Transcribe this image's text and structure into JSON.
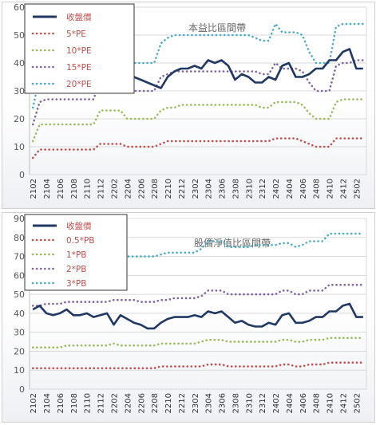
{
  "chart_data": [
    {
      "type": "line",
      "title": "本益比區間帶",
      "x": [
        "2102",
        "2103",
        "2104",
        "2105",
        "2106",
        "2107",
        "2108",
        "2109",
        "2110",
        "2111",
        "2112",
        "2201",
        "2202",
        "2203",
        "2204",
        "2205",
        "2206",
        "2207",
        "2208",
        "2209",
        "2210",
        "2211",
        "2212",
        "2301",
        "2302",
        "2303",
        "2304",
        "2305",
        "2306",
        "2307",
        "2308",
        "2309",
        "2310",
        "2311",
        "2312",
        "2401",
        "2402",
        "2403",
        "2404",
        "2405",
        "2406",
        "2407",
        "2408",
        "2409",
        "2410",
        "2411",
        "2412",
        "2501",
        "2502",
        "2503"
      ],
      "xticks": [
        "2102",
        "2104",
        "2106",
        "2108",
        "2110",
        "2112",
        "2202",
        "2204",
        "2206",
        "2208",
        "2210",
        "2212",
        "2302",
        "2304",
        "2306",
        "2308",
        "2310",
        "2312",
        "2402",
        "2404",
        "2406",
        "2408",
        "2410",
        "2412",
        "2502"
      ],
      "ylim": [
        0,
        60
      ],
      "yticks": [
        0,
        10,
        20,
        30,
        40,
        50,
        60
      ],
      "grid": true,
      "legend_position": "top-left",
      "series": [
        {
          "name": "收盤價",
          "color": "#1f3864",
          "style": "solid",
          "values": [
            39,
            38,
            36,
            37,
            36,
            38,
            39,
            38,
            36,
            37,
            37,
            40,
            33,
            39,
            37,
            35,
            34,
            33,
            32,
            31,
            35,
            37,
            38,
            38,
            39,
            38,
            41,
            40,
            41,
            39,
            34,
            36,
            35,
            33,
            33,
            35,
            34,
            39,
            40,
            35,
            35,
            36,
            38,
            38,
            41,
            41,
            44,
            45,
            38,
            38
          ]
        },
        {
          "name": "5*PE",
          "color": "#c0504d",
          "style": "dotted",
          "values": [
            6,
            9,
            9,
            9,
            9,
            9,
            9,
            9,
            9,
            9,
            11,
            11,
            11,
            11,
            10,
            10,
            10,
            10,
            10,
            11,
            12,
            12,
            12,
            12,
            12,
            12,
            12,
            12,
            12,
            12,
            12,
            12,
            12,
            12,
            12,
            12,
            13,
            13,
            13,
            13,
            12,
            11,
            10,
            10,
            10,
            13,
            13,
            13,
            13,
            13
          ]
        },
        {
          "name": "10*PE",
          "color": "#9bbb59",
          "style": "dotted",
          "values": [
            12,
            18,
            18,
            18,
            18,
            18,
            18,
            18,
            18,
            18,
            23,
            23,
            23,
            23,
            20,
            20,
            20,
            20,
            20,
            23,
            24,
            24,
            25,
            25,
            25,
            25,
            25,
            25,
            25,
            25,
            25,
            25,
            25,
            25,
            24,
            24,
            26,
            26,
            26,
            26,
            25,
            22,
            20,
            20,
            20,
            26,
            27,
            27,
            27,
            27
          ]
        },
        {
          "name": "15*PE",
          "color": "#8064a2",
          "style": "dotted",
          "values": [
            18,
            26,
            27,
            27,
            27,
            27,
            27,
            27,
            27,
            27,
            34,
            34,
            34,
            34,
            31,
            30,
            30,
            30,
            30,
            35,
            36,
            37,
            37,
            37,
            37,
            37,
            37,
            37,
            37,
            37,
            37,
            37,
            37,
            37,
            36,
            36,
            40,
            38,
            38,
            38,
            37,
            33,
            30,
            30,
            30,
            39,
            40,
            40,
            41,
            41
          ]
        },
        {
          "name": "20*PE",
          "color": "#4bacc6",
          "style": "dotted",
          "values": [
            24,
            35,
            36,
            36,
            36,
            36,
            36,
            36,
            36,
            36,
            46,
            46,
            46,
            46,
            41,
            40,
            40,
            40,
            40,
            47,
            49,
            50,
            50,
            50,
            50,
            50,
            50,
            50,
            50,
            50,
            50,
            50,
            50,
            49,
            48,
            48,
            54,
            51,
            51,
            51,
            50,
            44,
            40,
            40,
            40,
            53,
            54,
            54,
            54,
            54
          ]
        }
      ]
    },
    {
      "type": "line",
      "title": "股價淨值比區間帶",
      "x": [
        "2102",
        "2103",
        "2104",
        "2105",
        "2106",
        "2107",
        "2108",
        "2109",
        "2110",
        "2111",
        "2112",
        "2201",
        "2202",
        "2203",
        "2204",
        "2205",
        "2206",
        "2207",
        "2208",
        "2209",
        "2210",
        "2211",
        "2212",
        "2301",
        "2302",
        "2303",
        "2304",
        "2305",
        "2306",
        "2307",
        "2308",
        "2309",
        "2310",
        "2311",
        "2312",
        "2401",
        "2402",
        "2403",
        "2404",
        "2405",
        "2406",
        "2407",
        "2408",
        "2409",
        "2410",
        "2411",
        "2412",
        "2501",
        "2502",
        "2503"
      ],
      "xticks": [
        "2102",
        "2104",
        "2106",
        "2108",
        "2110",
        "2112",
        "2202",
        "2204",
        "2206",
        "2208",
        "2210",
        "2212",
        "2302",
        "2304",
        "2306",
        "2308",
        "2310",
        "2312",
        "2402",
        "2404",
        "2406",
        "2408",
        "2410",
        "2412",
        "2502"
      ],
      "ylim": [
        0,
        90
      ],
      "yticks": [
        0,
        10,
        20,
        30,
        40,
        50,
        60,
        70,
        80,
        90
      ],
      "grid": true,
      "legend_position": "top-left",
      "series": [
        {
          "name": "收盤價",
          "color": "#1f3864",
          "style": "solid",
          "values": [
            42,
            44,
            40,
            39,
            40,
            42,
            39,
            39,
            40,
            38,
            39,
            40,
            34,
            39,
            37,
            35,
            34,
            32,
            32,
            35,
            37,
            38,
            38,
            38,
            39,
            38,
            41,
            40,
            41,
            38,
            35,
            36,
            34,
            33,
            33,
            35,
            34,
            39,
            40,
            35,
            35,
            36,
            38,
            38,
            41,
            41,
            44,
            45,
            38,
            38
          ]
        },
        {
          "name": "0.5*PB",
          "color": "#c0504d",
          "style": "dotted",
          "values": [
            11,
            11,
            11,
            11,
            11,
            11,
            11,
            11,
            11,
            11,
            11,
            11,
            11,
            11,
            11,
            11,
            11,
            11,
            11,
            12,
            12,
            12,
            12,
            12,
            12,
            12,
            13,
            13,
            13,
            12,
            12,
            12,
            12,
            12,
            12,
            12,
            12,
            13,
            13,
            12,
            12,
            13,
            13,
            13,
            14,
            14,
            14,
            14,
            14,
            14
          ]
        },
        {
          "name": "1*PB",
          "color": "#9bbb59",
          "style": "dotted",
          "values": [
            22,
            22,
            22,
            22,
            22,
            23,
            23,
            23,
            23,
            23,
            23,
            23,
            24,
            23,
            23,
            23,
            23,
            23,
            23,
            24,
            24,
            24,
            24,
            24,
            24,
            25,
            26,
            26,
            26,
            25,
            25,
            25,
            25,
            25,
            25,
            25,
            25,
            26,
            26,
            25,
            25,
            26,
            26,
            26,
            27,
            27,
            27,
            27,
            27,
            27
          ]
        },
        {
          "name": "2*PB",
          "color": "#8064a2",
          "style": "dotted",
          "values": [
            44,
            44,
            45,
            45,
            45,
            46,
            46,
            46,
            46,
            46,
            46,
            46,
            47,
            47,
            47,
            47,
            46,
            46,
            46,
            47,
            47,
            48,
            48,
            48,
            48,
            49,
            52,
            52,
            52,
            50,
            50,
            50,
            50,
            50,
            50,
            50,
            50,
            52,
            52,
            50,
            50,
            52,
            52,
            52,
            55,
            55,
            55,
            55,
            55,
            55
          ]
        },
        {
          "name": "3*PB",
          "color": "#4bacc6",
          "style": "dotted",
          "values": [
            66,
            67,
            67,
            67,
            67,
            68,
            68,
            68,
            68,
            69,
            69,
            69,
            71,
            71,
            70,
            70,
            70,
            70,
            70,
            71,
            72,
            72,
            72,
            72,
            72,
            74,
            78,
            78,
            78,
            75,
            75,
            75,
            75,
            76,
            76,
            76,
            76,
            77,
            77,
            75,
            76,
            78,
            78,
            78,
            82,
            82,
            82,
            82,
            82,
            82
          ]
        }
      ]
    }
  ]
}
